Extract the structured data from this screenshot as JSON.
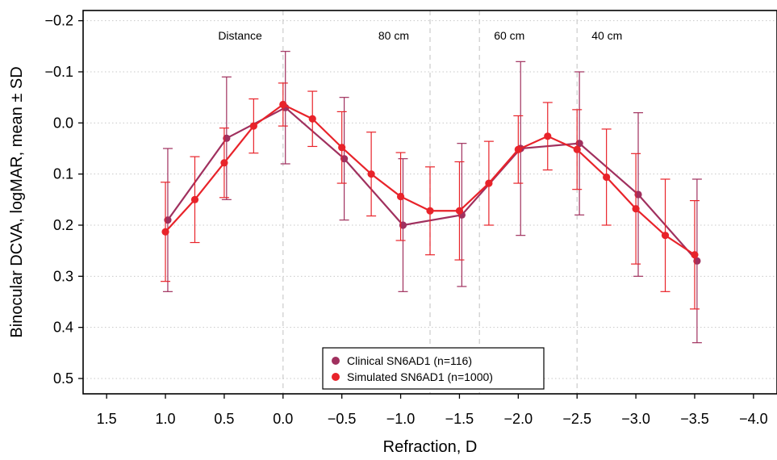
{
  "chart_data": {
    "type": "line",
    "title": "",
    "xlabel": "Refraction, D",
    "ylabel": "Binocular DCVA, logMAR, mean ± SD",
    "xlim": [
      1.7,
      -4.2
    ],
    "ylim": [
      -0.22,
      0.53
    ],
    "x_reversed": true,
    "y_reversed": true,
    "x_ticks": [
      1.5,
      1.0,
      0.5,
      0.0,
      -0.5,
      -1.0,
      -1.5,
      -2.0,
      -2.5,
      -3.0,
      -3.5,
      -4.0
    ],
    "x_tick_labels": [
      "1.5",
      "1.0",
      "0.5",
      "0.0",
      "−0.5",
      "−1.0",
      "−1.5",
      "−2.0",
      "−2.5",
      "−3.0",
      "−3.5",
      "−4.0"
    ],
    "y_ticks": [
      -0.2,
      -0.1,
      0.0,
      0.1,
      0.2,
      0.3,
      0.4,
      0.5
    ],
    "y_tick_labels": [
      "−0.2",
      "−0.1",
      "0.0",
      "0.1",
      "0.2",
      "0.3",
      "0.4",
      "0.5"
    ],
    "grid": "horizontal dotted",
    "legend_position": "bottom-center",
    "vlines": [
      {
        "x": 0.0,
        "label": "Distance",
        "label_align": "right"
      },
      {
        "x": -1.25,
        "label": "80 cm",
        "label_align": "right"
      },
      {
        "x": -1.67,
        "label": "60 cm",
        "label_align": "left"
      },
      {
        "x": -2.5,
        "label": "40 cm",
        "label_align": "left"
      }
    ],
    "series": [
      {
        "name": "Clinical SN6AD1 (n=116)",
        "color": "#A0305E",
        "x": [
          0.98,
          0.48,
          -0.02,
          -0.52,
          -1.02,
          -1.52,
          -2.02,
          -2.52,
          -3.02,
          -3.52
        ],
        "y": [
          0.19,
          0.03,
          -0.03,
          0.07,
          0.2,
          0.18,
          0.05,
          0.04,
          0.14,
          0.27
        ],
        "sd": [
          0.14,
          0.12,
          0.11,
          0.12,
          0.13,
          0.14,
          0.17,
          0.14,
          0.16,
          0.16
        ]
      },
      {
        "name": "Simulated SN6AD1 (n=1000)",
        "color": "#E8232A",
        "x": [
          1.0,
          0.75,
          0.5,
          0.25,
          0.0,
          -0.25,
          -0.5,
          -0.75,
          -1.0,
          -1.25,
          -1.5,
          -1.75,
          -2.0,
          -2.25,
          -2.5,
          -2.75,
          -3.0,
          -3.25,
          -3.5
        ],
        "y": [
          0.213,
          0.15,
          0.078,
          0.006,
          -0.036,
          -0.008,
          0.048,
          0.1,
          0.144,
          0.172,
          0.172,
          0.118,
          0.052,
          0.026,
          0.052,
          0.106,
          0.168,
          0.22,
          0.258
        ],
        "sd": [
          0.097,
          0.084,
          0.068,
          0.053,
          0.042,
          0.054,
          0.07,
          0.082,
          0.086,
          0.086,
          0.096,
          0.082,
          0.066,
          0.066,
          0.078,
          0.094,
          0.108,
          0.11,
          0.106
        ]
      }
    ]
  }
}
